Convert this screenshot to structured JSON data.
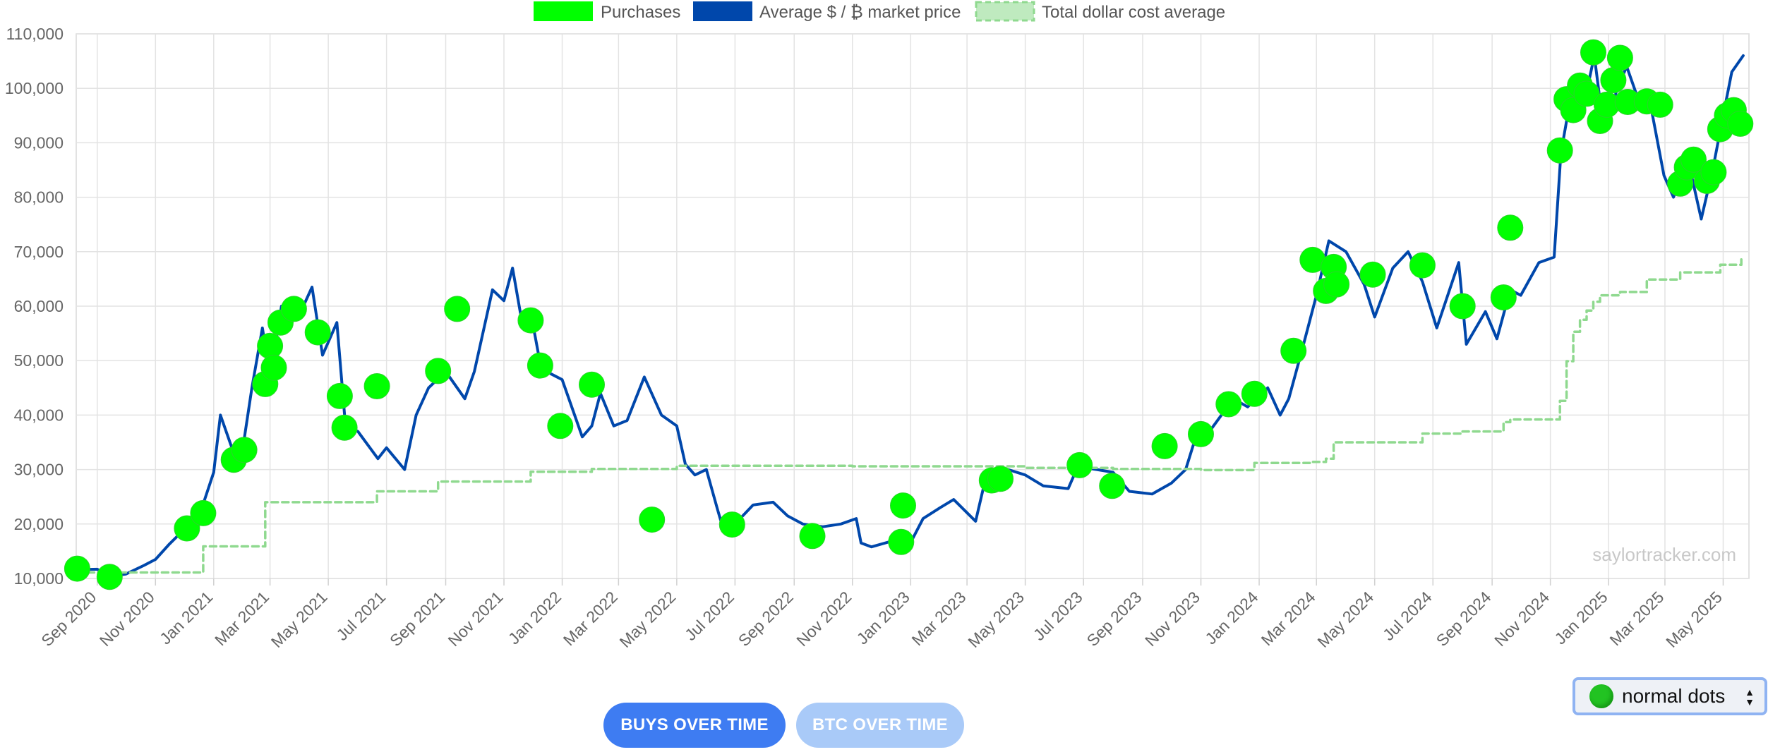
{
  "chart_data": {
    "type": "line",
    "x_range": [
      "2020-08-10",
      "2025-05-28"
    ],
    "y_range": [
      10000,
      110000
    ],
    "y_ticks": [
      10000,
      20000,
      30000,
      40000,
      50000,
      60000,
      70000,
      80000,
      90000,
      100000,
      110000
    ],
    "y_tick_labels": [
      "10,000",
      "20,000",
      "30,000",
      "40,000",
      "50,000",
      "60,000",
      "70,000",
      "80,000",
      "90,000",
      "100,000",
      "110,000"
    ],
    "x_ticks": [
      "2020-09-01",
      "2020-11-01",
      "2021-01-01",
      "2021-03-01",
      "2021-05-01",
      "2021-07-01",
      "2021-09-01",
      "2021-11-01",
      "2022-01-01",
      "2022-03-01",
      "2022-05-01",
      "2022-07-01",
      "2022-09-01",
      "2022-11-01",
      "2023-01-01",
      "2023-03-01",
      "2023-05-01",
      "2023-07-01",
      "2023-09-01",
      "2023-11-01",
      "2024-01-01",
      "2024-03-01",
      "2024-05-01",
      "2024-07-01",
      "2024-09-01",
      "2024-11-01",
      "2025-01-01",
      "2025-03-01",
      "2025-05-01"
    ],
    "x_tick_labels": [
      "Sep 2020",
      "Nov 2020",
      "Jan 2021",
      "Mar 2021",
      "May 2021",
      "Jul 2021",
      "Sep 2021",
      "Nov 2021",
      "Jan 2022",
      "Mar 2022",
      "May 2022",
      "Jul 2022",
      "Sep 2022",
      "Nov 2022",
      "Jan 2023",
      "Mar 2023",
      "May 2023",
      "Jul 2023",
      "Sep 2023",
      "Nov 2023",
      "Jan 2024",
      "Mar 2024",
      "May 2024",
      "Jul 2024",
      "Sep 2024",
      "Nov 2024",
      "Jan 2025",
      "Mar 2025",
      "May 2025"
    ],
    "grid": true,
    "legend_position": "top-center",
    "legend": [
      {
        "label": "Purchases",
        "color": "#00ff00",
        "kind": "box"
      },
      {
        "label": "Average $ / ₿ market price",
        "color": "#0047ab",
        "kind": "box"
      },
      {
        "label": "Total dollar cost average",
        "color": "#8fd98f",
        "kind": "dashed-box"
      }
    ],
    "series": [
      {
        "name": "Average $ / ₿ market price",
        "color": "#0047ab",
        "style": "solid",
        "x": [
          "2020-08-11",
          "2020-09-01",
          "2020-09-15",
          "2020-10-01",
          "2020-10-20",
          "2020-11-01",
          "2020-11-15",
          "2020-12-01",
          "2020-12-15",
          "2021-01-01",
          "2021-01-08",
          "2021-01-20",
          "2021-02-01",
          "2021-02-10",
          "2021-02-21",
          "2021-03-01",
          "2021-03-13",
          "2021-04-01",
          "2021-04-14",
          "2021-04-25",
          "2021-05-10",
          "2021-05-19",
          "2021-06-01",
          "2021-06-22",
          "2021-07-01",
          "2021-07-20",
          "2021-08-01",
          "2021-08-14",
          "2021-09-01",
          "2021-09-07",
          "2021-09-21",
          "2021-10-01",
          "2021-10-20",
          "2021-11-01",
          "2021-11-10",
          "2021-11-20",
          "2021-12-01",
          "2021-12-10",
          "2022-01-01",
          "2022-01-22",
          "2022-02-01",
          "2022-02-10",
          "2022-02-24",
          "2022-03-10",
          "2022-03-28",
          "2022-04-15",
          "2022-05-01",
          "2022-05-10",
          "2022-05-20",
          "2022-06-01",
          "2022-06-13",
          "2022-06-18",
          "2022-07-01",
          "2022-07-20",
          "2022-08-10",
          "2022-08-25",
          "2022-09-10",
          "2022-10-01",
          "2022-10-20",
          "2022-11-05",
          "2022-11-10",
          "2022-11-21",
          "2022-12-15",
          "2023-01-01",
          "2023-01-14",
          "2023-02-01",
          "2023-02-15",
          "2023-03-10",
          "2023-03-20",
          "2023-04-13",
          "2023-05-01",
          "2023-05-20",
          "2023-06-15",
          "2023-06-25",
          "2023-07-15",
          "2023-08-01",
          "2023-08-18",
          "2023-09-11",
          "2023-10-01",
          "2023-10-16",
          "2023-10-24",
          "2023-11-10",
          "2023-12-05",
          "2023-12-20",
          "2024-01-10",
          "2024-01-23",
          "2024-02-01",
          "2024-02-15",
          "2024-03-01",
          "2024-03-14",
          "2024-04-01",
          "2024-04-20",
          "2024-05-01",
          "2024-05-20",
          "2024-06-05",
          "2024-06-20",
          "2024-07-05",
          "2024-07-28",
          "2024-08-05",
          "2024-08-25",
          "2024-09-06",
          "2024-09-20",
          "2024-10-01",
          "2024-10-20",
          "2024-11-05",
          "2024-11-12",
          "2024-11-22",
          "2024-12-05",
          "2024-12-17",
          "2024-12-25",
          "2025-01-01",
          "2025-01-10",
          "2025-01-20",
          "2025-02-01",
          "2025-02-15",
          "2025-02-28",
          "2025-03-10",
          "2025-03-25",
          "2025-04-08",
          "2025-04-20",
          "2025-05-01",
          "2025-05-10",
          "2025-05-22"
        ],
        "y": [
          11600,
          11700,
          10400,
          10800,
          12400,
          13500,
          16200,
          19000,
          20500,
          29500,
          40000,
          34000,
          34500,
          45000,
          56000,
          47000,
          60000,
          58500,
          63500,
          51000,
          57000,
          38000,
          37000,
          32000,
          34000,
          30000,
          40000,
          45000,
          48000,
          46500,
          43000,
          48000,
          63000,
          61000,
          67000,
          57000,
          57000,
          48500,
          46500,
          36000,
          38000,
          44000,
          38000,
          39000,
          47000,
          40000,
          38000,
          31000,
          29000,
          30000,
          22500,
          19500,
          20000,
          23500,
          24000,
          21500,
          20000,
          19500,
          20000,
          21000,
          16500,
          15800,
          17000,
          16600,
          21000,
          23000,
          24500,
          20500,
          28000,
          30000,
          29000,
          27000,
          26500,
          30500,
          30000,
          29500,
          26000,
          25500,
          27500,
          30000,
          34500,
          37000,
          43000,
          41500,
          45000,
          40000,
          43000,
          52000,
          62000,
          72000,
          70000,
          64000,
          58000,
          67000,
          70000,
          64500,
          56000,
          68000,
          53000,
          59000,
          54000,
          63000,
          62000,
          68000,
          69000,
          88000,
          98000,
          96000,
          106000,
          95000,
          94000,
          100000,
          104000,
          98000,
          96000,
          84000,
          80000,
          87000,
          76000,
          85000,
          95000,
          103000,
          106000
        ]
      },
      {
        "name": "Total dollar cost average",
        "color": "#8fd98f",
        "style": "dashed",
        "step": true,
        "x": [
          "2020-08-11",
          "2020-12-21",
          "2021-02-24",
          "2021-06-21",
          "2021-08-24",
          "2021-11-29",
          "2022-02-01",
          "2022-05-01",
          "2022-11-01",
          "2023-05-01",
          "2023-08-01",
          "2023-11-01",
          "2023-12-27",
          "2024-02-26",
          "2024-03-11",
          "2024-03-19",
          "2024-06-20",
          "2024-08-01",
          "2024-09-13",
          "2024-09-20",
          "2024-11-11",
          "2024-11-18",
          "2024-11-25",
          "2024-12-02",
          "2024-12-09",
          "2024-12-16",
          "2024-12-23",
          "2025-01-13",
          "2025-02-10",
          "2025-03-17",
          "2025-04-28",
          "2025-05-20"
        ],
        "y": [
          11100,
          15900,
          24000,
          26000,
          27800,
          29600,
          30100,
          30700,
          30600,
          30300,
          30100,
          29900,
          31200,
          31400,
          32000,
          35000,
          36600,
          37000,
          38700,
          39200,
          42600,
          49900,
          55300,
          57500,
          59200,
          60800,
          62000,
          62600,
          64900,
          66200,
          67600,
          68600
        ]
      }
    ],
    "purchases": {
      "name": "Purchases",
      "color": "#00ff00",
      "x": [
        "2020-08-11",
        "2020-09-14",
        "2020-12-04",
        "2020-12-21",
        "2021-01-22",
        "2021-02-02",
        "2021-02-24",
        "2021-03-01",
        "2021-03-05",
        "2021-03-12",
        "2021-03-26",
        "2021-04-20",
        "2021-05-13",
        "2021-05-18",
        "2021-06-21",
        "2021-08-24",
        "2021-09-13",
        "2021-11-29",
        "2021-12-09",
        "2021-12-30",
        "2022-02-01",
        "2022-04-05",
        "2022-06-28",
        "2022-09-20",
        "2022-12-22",
        "2022-12-24",
        "2023-03-27",
        "2023-04-05",
        "2023-06-27",
        "2023-07-31",
        "2023-09-24",
        "2023-11-01",
        "2023-11-30",
        "2023-12-27",
        "2024-02-06",
        "2024-02-26",
        "2024-03-11",
        "2024-03-19",
        "2024-03-22",
        "2024-04-29",
        "2024-06-20",
        "2024-08-01",
        "2024-09-13",
        "2024-09-20",
        "2024-11-11",
        "2024-11-18",
        "2024-11-25",
        "2024-12-02",
        "2024-12-09",
        "2024-12-16",
        "2024-12-23",
        "2024-12-30",
        "2025-01-06",
        "2025-01-13",
        "2025-01-21",
        "2025-02-10",
        "2025-02-24",
        "2025-03-17",
        "2025-03-24",
        "2025-03-31",
        "2025-04-14",
        "2025-04-21",
        "2025-04-28",
        "2025-05-05",
        "2025-05-12",
        "2025-05-19"
      ],
      "y": [
        11800,
        10300,
        19200,
        22000,
        31800,
        33600,
        45700,
        52700,
        48700,
        57000,
        59500,
        55200,
        43500,
        37700,
        45300,
        48100,
        59500,
        57400,
        49100,
        38000,
        45600,
        20800,
        19900,
        17800,
        16700,
        23400,
        28000,
        28300,
        30800,
        27000,
        34300,
        36500,
        42000,
        43900,
        51800,
        68500,
        62800,
        67200,
        64000,
        65800,
        67500,
        60000,
        61600,
        74400,
        88600,
        98000,
        96000,
        100500,
        99000,
        106600,
        94000,
        97000,
        101500,
        105600,
        97500,
        97600,
        97000,
        82500,
        85500,
        86900,
        83000,
        84600,
        92500,
        95000,
        96000,
        93500
      ]
    }
  },
  "watermark": "saylortracker.com",
  "controls": {
    "buys_over_time": "BUYS OVER TIME",
    "btc_over_time": "BTC OVER TIME",
    "dot_style": {
      "selected": "normal dots",
      "icon": "green-dot-icon"
    }
  }
}
